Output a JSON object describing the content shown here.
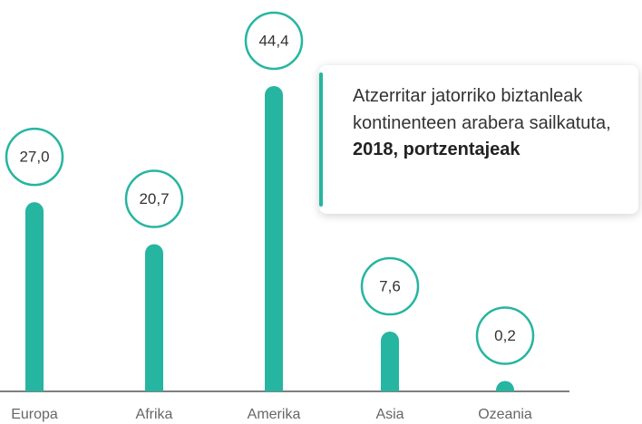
{
  "chart_data": {
    "type": "bar",
    "title": "Atzerritar jatorriko biztanleak kontinenteen arabera sailkatuta,",
    "title_bold": "2018, portzentajeak",
    "categories": [
      "Europa",
      "Afrika",
      "Amerika",
      "Asia",
      "Ozeania"
    ],
    "values": [
      27.0,
      20.7,
      44.4,
      7.6,
      0.2
    ],
    "value_labels": [
      "27,0",
      "20,7",
      "44,4",
      "7,6",
      "0,2"
    ],
    "color": "#26b5a0"
  }
}
